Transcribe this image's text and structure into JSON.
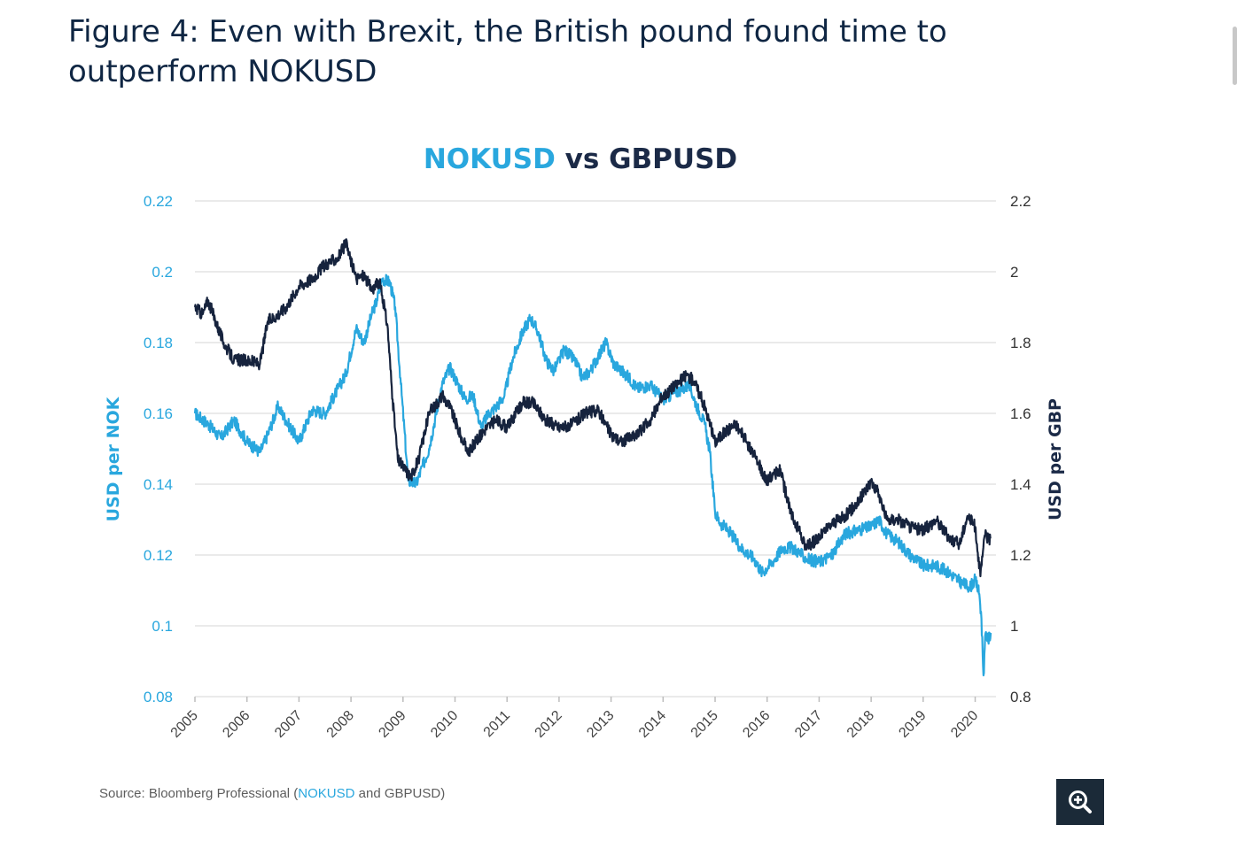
{
  "figure": {
    "title": "Figure 4: Even with Brexit, the British pound found time to outperform NOKUSD"
  },
  "source": {
    "prefix": "Source: Bloomberg Professional (",
    "nok": "NOKUSD",
    "middle": " and ",
    "gbp": "GBPUSD",
    "suffix": ")"
  },
  "zoom_button": {
    "icon": "zoom-in-icon"
  },
  "colors": {
    "nok": "#29a7de",
    "gbp": "#16233d",
    "grid": "#e3e3e3",
    "axis_text": "#8c8c8c"
  },
  "chart_data": {
    "type": "line",
    "title_parts": {
      "nok": "NOKUSD",
      "vs": " vs ",
      "gbp": "GBPUSD"
    },
    "xlabel": "",
    "ylabel_left": "USD per NOK",
    "ylabel_right": "USD per GBP",
    "xlim": [
      2005,
      2020.4
    ],
    "ylim_left": [
      0.08,
      0.22
    ],
    "ylim_right": [
      0.8,
      2.2
    ],
    "x_ticks": [
      "2005",
      "2006",
      "2007",
      "2008",
      "2009",
      "2010",
      "2011",
      "2012",
      "2013",
      "2014",
      "2015",
      "2016",
      "2017",
      "2018",
      "2019",
      "2020"
    ],
    "y_ticks_left": [
      "0.22",
      "0.2",
      "0.18",
      "0.16",
      "0.14",
      "0.12",
      "0.1",
      "0.08"
    ],
    "y_ticks_right": [
      "2.2",
      "2",
      "1.8",
      "1.6",
      "1.4",
      "1.2",
      "1",
      "0.8"
    ],
    "grid": "horizontal",
    "series": [
      {
        "name": "NOKUSD",
        "axis": "left",
        "color": "#29a7de",
        "x": [
          2005.0,
          2005.25,
          2005.5,
          2005.75,
          2006.0,
          2006.25,
          2006.4,
          2006.6,
          2006.75,
          2007.0,
          2007.25,
          2007.5,
          2007.75,
          2007.9,
          2008.1,
          2008.25,
          2008.4,
          2008.5,
          2008.6,
          2008.75,
          2008.85,
          2008.95,
          2009.1,
          2009.25,
          2009.5,
          2009.75,
          2009.9,
          2010.0,
          2010.2,
          2010.35,
          2010.5,
          2010.65,
          2010.8,
          2010.95,
          2011.1,
          2011.3,
          2011.45,
          2011.6,
          2011.75,
          2011.9,
          2012.1,
          2012.3,
          2012.45,
          2012.6,
          2012.75,
          2012.9,
          2013.05,
          2013.2,
          2013.35,
          2013.5,
          2013.75,
          2014.0,
          2014.25,
          2014.5,
          2014.65,
          2014.8,
          2014.9,
          2015.0,
          2015.1,
          2015.25,
          2015.5,
          2015.75,
          2015.9,
          2016.1,
          2016.3,
          2016.5,
          2016.75,
          2017.0,
          2017.25,
          2017.5,
          2017.75,
          2018.0,
          2018.15,
          2018.3,
          2018.5,
          2018.75,
          2019.0,
          2019.25,
          2019.5,
          2019.75,
          2019.9,
          2020.0,
          2020.08,
          2020.12,
          2020.16,
          2020.2,
          2020.25,
          2020.3
        ],
        "values": [
          0.16,
          0.157,
          0.153,
          0.158,
          0.152,
          0.149,
          0.154,
          0.162,
          0.158,
          0.152,
          0.161,
          0.16,
          0.167,
          0.171,
          0.184,
          0.18,
          0.188,
          0.192,
          0.198,
          0.197,
          0.19,
          0.17,
          0.141,
          0.14,
          0.15,
          0.168,
          0.173,
          0.17,
          0.164,
          0.165,
          0.156,
          0.16,
          0.162,
          0.165,
          0.175,
          0.183,
          0.187,
          0.183,
          0.175,
          0.172,
          0.178,
          0.175,
          0.17,
          0.172,
          0.176,
          0.18,
          0.174,
          0.172,
          0.17,
          0.167,
          0.168,
          0.164,
          0.166,
          0.168,
          0.162,
          0.157,
          0.149,
          0.132,
          0.129,
          0.127,
          0.122,
          0.119,
          0.115,
          0.118,
          0.122,
          0.122,
          0.119,
          0.118,
          0.12,
          0.126,
          0.127,
          0.128,
          0.13,
          0.126,
          0.124,
          0.12,
          0.117,
          0.117,
          0.115,
          0.112,
          0.111,
          0.113,
          0.109,
          0.102,
          0.086,
          0.098,
          0.096,
          0.098
        ]
      },
      {
        "name": "GBPUSD",
        "axis": "right",
        "color": "#16233d",
        "x": [
          2005.0,
          2005.15,
          2005.25,
          2005.4,
          2005.55,
          2005.75,
          2006.0,
          2006.25,
          2006.4,
          2006.6,
          2006.75,
          2007.0,
          2007.25,
          2007.5,
          2007.75,
          2007.9,
          2008.1,
          2008.25,
          2008.4,
          2008.55,
          2008.7,
          2008.8,
          2008.9,
          2009.0,
          2009.15,
          2009.3,
          2009.5,
          2009.75,
          2009.9,
          2010.1,
          2010.25,
          2010.4,
          2010.6,
          2010.8,
          2011.0,
          2011.3,
          2011.5,
          2011.75,
          2012.0,
          2012.25,
          2012.5,
          2012.75,
          2013.0,
          2013.2,
          2013.5,
          2013.75,
          2014.0,
          2014.25,
          2014.45,
          2014.6,
          2014.8,
          2015.0,
          2015.2,
          2015.4,
          2015.6,
          2015.75,
          2016.0,
          2016.25,
          2016.45,
          2016.55,
          2016.75,
          2017.0,
          2017.25,
          2017.5,
          2017.75,
          2018.0,
          2018.15,
          2018.3,
          2018.5,
          2018.75,
          2019.0,
          2019.25,
          2019.5,
          2019.7,
          2019.85,
          2020.0,
          2020.1,
          2020.2,
          2020.25,
          2020.3
        ],
        "values": [
          1.9,
          1.88,
          1.92,
          1.86,
          1.8,
          1.75,
          1.75,
          1.74,
          1.86,
          1.88,
          1.9,
          1.96,
          1.98,
          2.02,
          2.04,
          2.08,
          1.98,
          1.99,
          1.95,
          1.97,
          1.85,
          1.64,
          1.47,
          1.45,
          1.42,
          1.47,
          1.6,
          1.65,
          1.62,
          1.54,
          1.49,
          1.52,
          1.56,
          1.58,
          1.56,
          1.63,
          1.63,
          1.58,
          1.56,
          1.57,
          1.6,
          1.61,
          1.54,
          1.52,
          1.54,
          1.58,
          1.65,
          1.68,
          1.71,
          1.69,
          1.62,
          1.52,
          1.55,
          1.57,
          1.52,
          1.48,
          1.41,
          1.44,
          1.32,
          1.29,
          1.22,
          1.25,
          1.29,
          1.31,
          1.35,
          1.41,
          1.37,
          1.3,
          1.3,
          1.28,
          1.27,
          1.3,
          1.25,
          1.23,
          1.31,
          1.28,
          1.14,
          1.27,
          1.24,
          1.25
        ]
      }
    ]
  }
}
